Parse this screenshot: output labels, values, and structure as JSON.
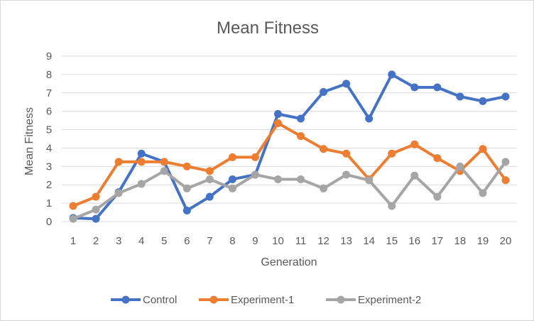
{
  "chart_data": {
    "type": "line",
    "title": "Mean Fitness",
    "xlabel": "Generation",
    "ylabel": "Mean Fitness",
    "x": [
      1,
      2,
      3,
      4,
      5,
      6,
      7,
      8,
      9,
      10,
      11,
      12,
      13,
      14,
      15,
      16,
      17,
      18,
      19,
      20
    ],
    "ylim": [
      0,
      9
    ],
    "yticks": [
      0,
      1,
      2,
      3,
      4,
      5,
      6,
      7,
      8,
      9
    ],
    "grid": true,
    "legend_position": "bottom",
    "series": [
      {
        "name": "Control",
        "color": "#4472C4",
        "values": [
          0.2,
          0.15,
          1.6,
          3.7,
          3.25,
          0.6,
          1.35,
          2.3,
          2.55,
          5.85,
          5.6,
          7.05,
          7.5,
          5.6,
          8.0,
          7.3,
          7.3,
          6.8,
          6.55,
          6.8
        ]
      },
      {
        "name": "Experiment-1",
        "color": "#ED7D31",
        "values": [
          0.85,
          1.35,
          3.25,
          3.25,
          3.25,
          3.0,
          2.75,
          3.5,
          3.5,
          5.35,
          4.65,
          3.95,
          3.7,
          2.3,
          3.7,
          4.2,
          3.45,
          2.75,
          3.95,
          2.25
        ]
      },
      {
        "name": "Experiment-2",
        "color": "#A5A5A5",
        "values": [
          0.15,
          0.65,
          1.55,
          2.05,
          2.75,
          1.8,
          2.3,
          1.8,
          2.55,
          2.3,
          2.3,
          1.8,
          2.55,
          2.25,
          0.85,
          2.5,
          1.35,
          3.0,
          1.55,
          3.25
        ]
      }
    ]
  }
}
